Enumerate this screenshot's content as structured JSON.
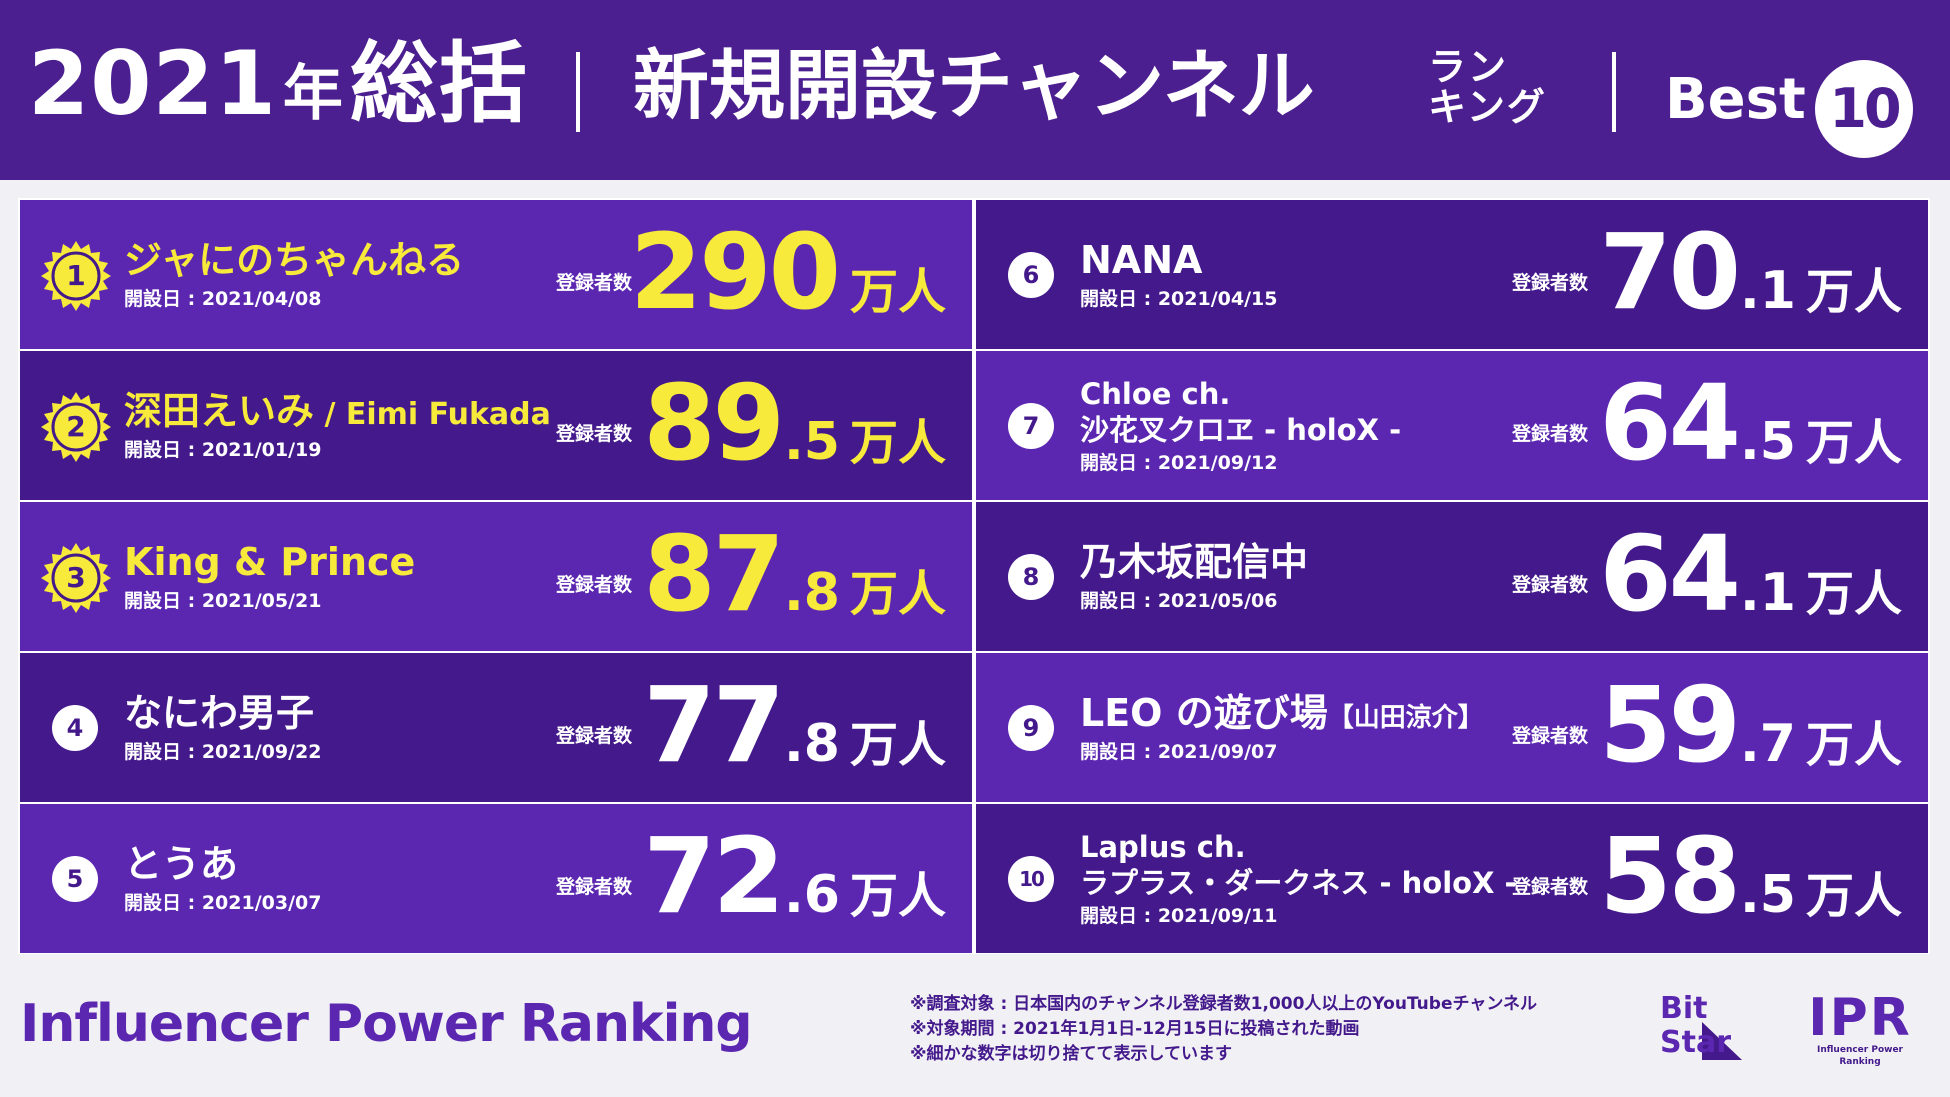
{
  "header": {
    "year": "2021",
    "year_suffix": "年",
    "summary": "総括",
    "title": "新規開設チャンネル",
    "ranking_line1": "ラン",
    "ranking_line2": "キング",
    "best_label": "Best",
    "best_number": "10"
  },
  "subs_label": "登録者数",
  "unit": "万人",
  "entries": [
    {
      "rank": "1",
      "name": "ジャにのちゃんねる",
      "date": "開設日 : 2021/04/08",
      "count_int": "290",
      "count_dec": ""
    },
    {
      "rank": "2",
      "name": "深田えいみ",
      "name_sub": " / Eimi Fukada",
      "date": "開設日 : 2021/01/19",
      "count_int": "89",
      "count_dec": ".5"
    },
    {
      "rank": "3",
      "name": "King & Prince",
      "date": "開設日 : 2021/05/21",
      "count_int": "87",
      "count_dec": ".8"
    },
    {
      "rank": "4",
      "name": "なにわ男子",
      "date": "開設日 : 2021/09/22",
      "count_int": "77",
      "count_dec": ".8"
    },
    {
      "rank": "5",
      "name": "とうあ",
      "date": "開設日 : 2021/03/07",
      "count_int": "72",
      "count_dec": ".6"
    },
    {
      "rank": "6",
      "name": "NANA",
      "date": "開設日 : 2021/04/15",
      "count_int": "70",
      "count_dec": ".1"
    },
    {
      "rank": "7",
      "name_line1": "Chloe ch.",
      "name_line2": "沙花叉クロヱ - holoX -",
      "date": "開設日 : 2021/09/12",
      "count_int": "64",
      "count_dec": ".5"
    },
    {
      "rank": "8",
      "name": "乃木坂配信中",
      "date": "開設日 : 2021/05/06",
      "count_int": "64",
      "count_dec": ".1"
    },
    {
      "rank": "9",
      "name": "LEO の遊び場",
      "name_sub": "【山田涼介】",
      "date": "開設日 : 2021/09/07",
      "count_int": "59",
      "count_dec": ".7"
    },
    {
      "rank": "10",
      "name_line1": "Laplus ch.",
      "name_line2": "ラプラス・ダークネス - holoX -",
      "date": "開設日 : 2021/09/11",
      "count_int": "58",
      "count_dec": ".5"
    }
  ],
  "footer": {
    "brand": "Influencer Power Ranking",
    "notes": [
      "※調査対象 : 日本国内のチャンネル登録者数1,000人以上のYouTubeチャンネル",
      "※対象期間 : 2021年1月1日-12月15日に投稿された動画",
      "※細かな数字は切り捨てて表示しています"
    ],
    "bitstar_line1": "Bit",
    "bitstar_line2": "Star",
    "ipr_mark": "IPR",
    "ipr_text": "Influencer Power Ranking"
  },
  "colors": {
    "header_bg": "#4b1f8f",
    "card_light": "#5b27b1",
    "card_dark": "#43198b",
    "gold": "#f7ea3a",
    "page_bg": "#f1f1f5"
  },
  "icons": [
    "sun-badge-icon",
    "rank-circle-icon",
    "bitstar-logo-icon",
    "ipr-logo-icon"
  ]
}
